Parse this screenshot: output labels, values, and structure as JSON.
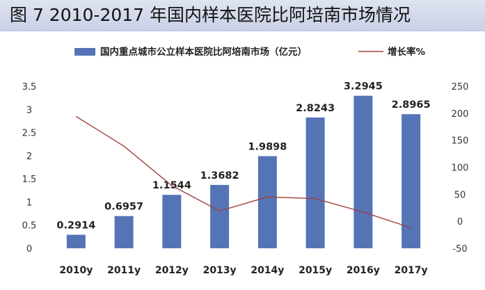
{
  "banner": {
    "title": "图 7  2010-2017 年国内样本医院比阿培南市场情况"
  },
  "colors": {
    "bar": "#5574b6",
    "line": "#a0403c",
    "banner_bg": "#d6dcec"
  },
  "chart_data": {
    "type": "bar",
    "title": "",
    "categories": [
      "2010y",
      "2011y",
      "2012y",
      "2013y",
      "2014y",
      "2015y",
      "2016y",
      "2017y"
    ],
    "series": [
      {
        "name": "国内重点城市公立样本医院比阿培南市场（亿元）",
        "type": "bar",
        "axis": "left",
        "values": [
          0.2914,
          0.6957,
          1.1544,
          1.3682,
          1.9898,
          2.8243,
          3.2945,
          2.8965
        ],
        "labels": [
          "0.2914",
          "0.6957",
          "1.1544",
          "1.3682",
          "1.9898",
          "2.8243",
          "3.2945",
          "2.8965"
        ]
      },
      {
        "name": "增长率%",
        "type": "line",
        "axis": "right",
        "values": [
          194,
          139,
          66,
          19,
          45,
          42,
          17,
          -12
        ]
      }
    ],
    "left_axis": {
      "ylim": [
        0,
        3.5
      ],
      "ticks": [
        "0",
        "0.5",
        "1",
        "1.5",
        "2",
        "2.5",
        "3",
        "3.5"
      ]
    },
    "right_axis": {
      "ylim": [
        -50,
        250
      ],
      "ticks": [
        "-50",
        "0",
        "50",
        "100",
        "150",
        "200",
        "250"
      ]
    },
    "grid": false,
    "legend": {
      "position": "top"
    }
  }
}
